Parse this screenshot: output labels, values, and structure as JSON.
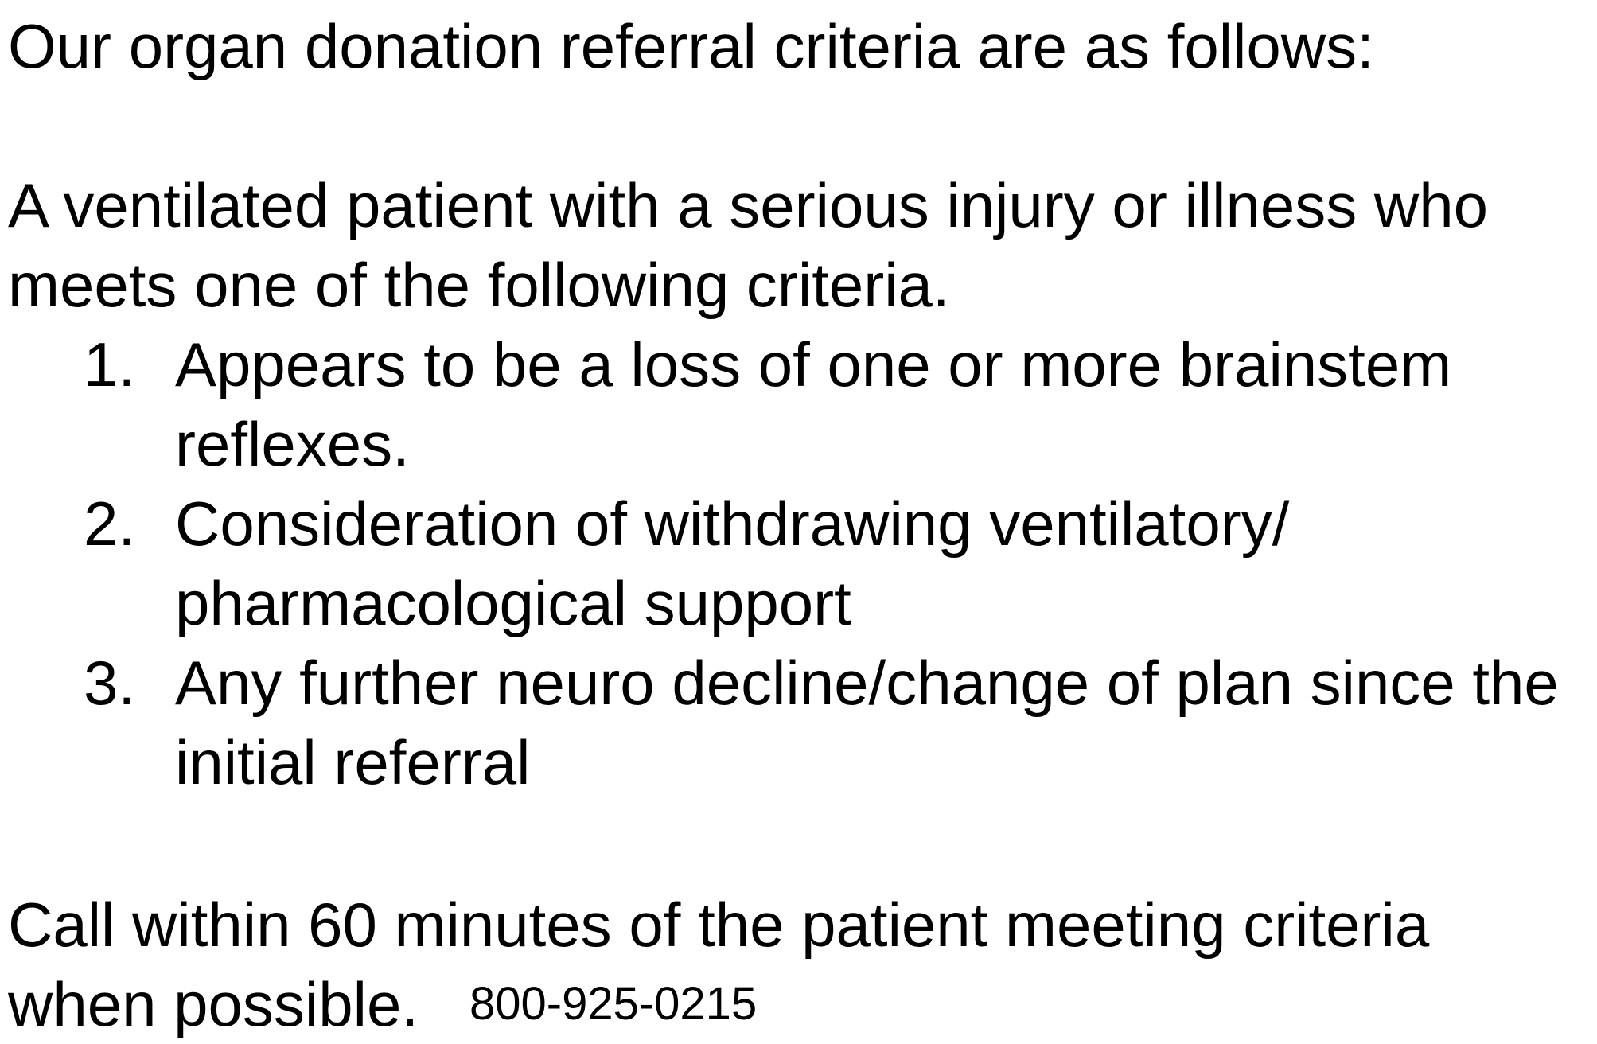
{
  "document": {
    "intro": "Our organ donation referral criteria are as follows:",
    "description_line1": "A ventilated patient with a serious injury or illness who",
    "description_line2": "meets one of the following criteria.",
    "criteria": [
      {
        "number": "1.",
        "line1": "Appears to be a loss of one or more brainstem",
        "line2": "reflexes."
      },
      {
        "number": "2.",
        "line1": "Consideration of withdrawing ventilatory/",
        "line2": "pharmacological support"
      },
      {
        "number": "3.",
        "line1": "Any further neuro decline/change of plan since the",
        "line2": "initial referral"
      }
    ],
    "call_line1": "Call within 60 minutes of the patient meeting criteria",
    "call_line2": "when possible.",
    "phone": "800-925-0215"
  }
}
